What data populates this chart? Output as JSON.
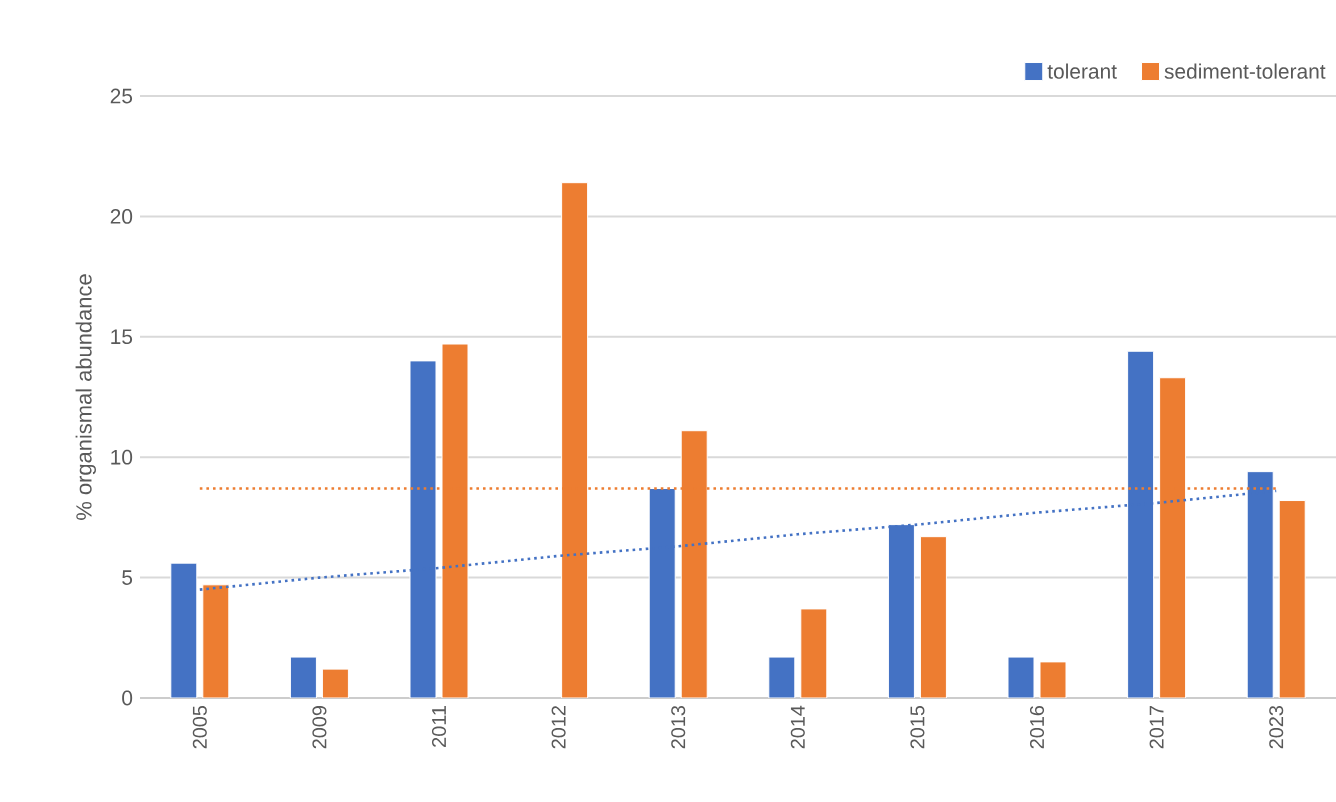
{
  "chart_data": {
    "type": "bar",
    "ylabel": "% organismal abundance",
    "categories": [
      "2005",
      "2009",
      "2011",
      "2012",
      "2013",
      "2014",
      "2015",
      "2016",
      "2017",
      "2023"
    ],
    "series": [
      {
        "name": "tolerant",
        "color": "#4472c4",
        "values": [
          5.6,
          1.7,
          14.0,
          null,
          8.7,
          1.7,
          7.2,
          1.7,
          14.4,
          9.4
        ]
      },
      {
        "name": "sediment-tolerant",
        "color": "#ed7d31",
        "values": [
          4.7,
          1.2,
          14.7,
          21.4,
          11.1,
          3.7,
          6.7,
          1.5,
          13.3,
          8.2
        ]
      },
      {
        "type": "line",
        "color": "#4472c4",
        "values": [
          4.5,
          5.0,
          5.4,
          5.9,
          6.3,
          6.8,
          7.2,
          7.7,
          8.1,
          8.6
        ],
        "line_style": "dotted"
      },
      {
        "type": "line",
        "color": "#ed7d31",
        "values": [
          8.7,
          8.7,
          8.7,
          8.7,
          8.7,
          8.7,
          8.7,
          8.7,
          8.7,
          8.7
        ],
        "line_style": "dotted"
      }
    ],
    "ylim": [
      0,
      25
    ],
    "yticks": [
      0,
      5,
      10,
      15,
      20,
      25
    ],
    "grid": "y",
    "legend": "top right"
  }
}
